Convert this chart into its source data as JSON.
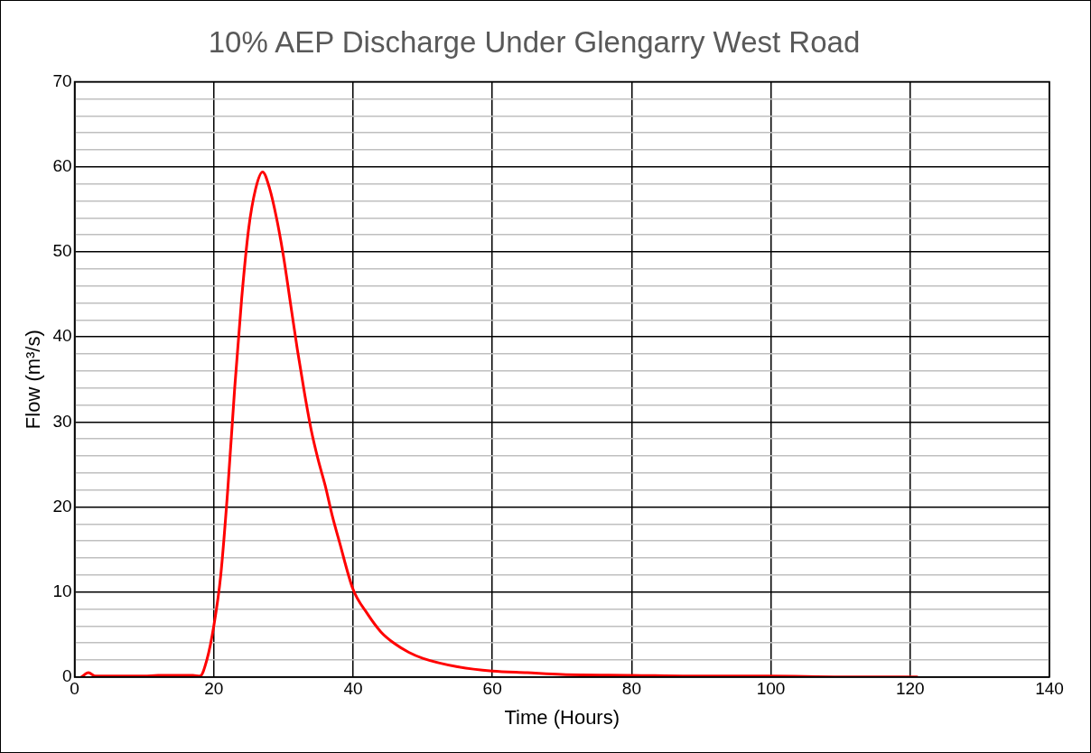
{
  "chart_data": {
    "type": "line",
    "title": "10% AEP Discharge Under Glengarry West Road",
    "xlabel": "Time (Hours)",
    "ylabel": "Flow (m³/s)",
    "x": [
      1,
      2,
      3,
      10,
      12,
      17,
      18,
      19,
      20,
      21,
      22,
      23,
      24,
      25,
      26,
      27,
      28,
      29,
      30,
      31,
      32,
      33,
      34,
      35,
      36,
      37,
      38,
      40,
      42,
      44,
      46,
      48,
      50,
      55,
      60,
      65,
      70,
      80,
      90,
      100,
      110,
      121
    ],
    "series": [
      {
        "color": "#ff0000",
        "values": [
          0,
          0.5,
          0.1,
          0.1,
          0.2,
          0.2,
          0.1,
          2,
          6,
          12,
          22,
          34,
          44.5,
          52.7,
          57.4,
          59.4,
          57.5,
          54,
          49.5,
          44,
          38.5,
          33.5,
          29,
          25.5,
          22.5,
          19,
          16,
          10.3,
          7.5,
          5.3,
          3.9,
          2.9,
          2.2,
          1.2,
          0.7,
          0.5,
          0.3,
          0.2,
          0.1,
          0.1,
          0,
          0
        ]
      }
    ],
    "xlim": [
      0,
      140
    ],
    "xticks": [
      0,
      20,
      40,
      60,
      80,
      100,
      120,
      140
    ],
    "ylim": [
      0,
      70
    ],
    "yticks": [
      0,
      {
        "value": 2,
        "label": null
      },
      {
        "value": 4,
        "label": null
      },
      {
        "value": 6,
        "label": null
      },
      {
        "value": 8,
        "label": null
      },
      10,
      {
        "value": 12,
        "label": null
      },
      {
        "value": 14,
        "label": null
      },
      {
        "value": 16,
        "label": null
      },
      {
        "value": 18,
        "label": null
      },
      20,
      {
        "value": 22,
        "label": null
      },
      {
        "value": 24,
        "label": null
      },
      {
        "value": 26,
        "label": null
      },
      {
        "value": 28,
        "label": null
      },
      30,
      {
        "value": 32,
        "label": null
      },
      {
        "value": 34,
        "label": null
      },
      {
        "value": 36,
        "label": null
      },
      {
        "value": 38,
        "label": null
      },
      40,
      {
        "value": 42,
        "label": null
      },
      {
        "value": 44,
        "label": null
      },
      {
        "value": 46,
        "label": null
      },
      {
        "value": 48,
        "label": null
      },
      50,
      {
        "value": 52,
        "label": null
      },
      {
        "value": 54,
        "label": null
      },
      {
        "value": 56,
        "label": null
      },
      {
        "value": 58,
        "label": null
      },
      60,
      {
        "value": 62,
        "label": null
      },
      {
        "value": 64,
        "label": null
      },
      {
        "value": 66,
        "label": null
      },
      {
        "value": 68,
        "label": null
      },
      70
    ],
    "grid": true,
    "legend": false,
    "marker": "none",
    "line_style": "solid"
  }
}
